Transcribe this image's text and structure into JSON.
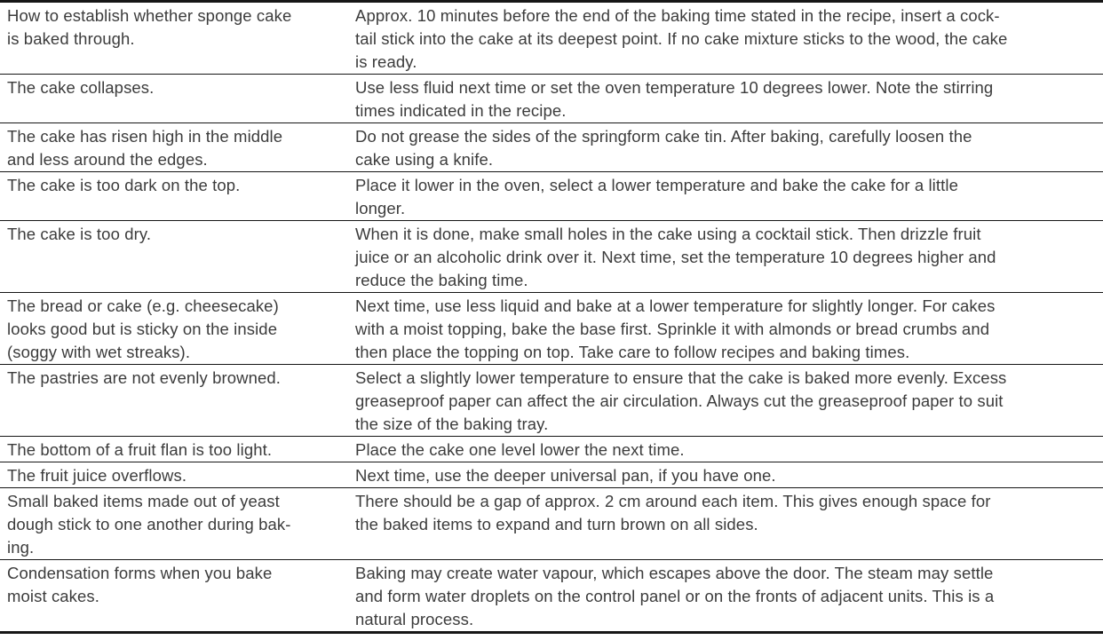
{
  "colors": {
    "background": "#ffffff",
    "text": "#3c3c3c",
    "rule": "#161616"
  },
  "table": {
    "columns": [
      "problem",
      "solution"
    ],
    "rows": [
      {
        "problem": [
          "How to establish whether sponge cake",
          "is baked through."
        ],
        "solution": [
          "Approx. 10 minutes before the end of the baking time stated in the recipe, insert a cock-",
          "tail stick into the cake at its deepest point. If no cake mixture sticks to the wood, the cake",
          "is ready."
        ]
      },
      {
        "problem": [
          "The cake collapses."
        ],
        "solution": [
          "Use less fluid next time or set the oven temperature 10 degrees lower. Note the stirring",
          "times indicated in the recipe."
        ]
      },
      {
        "problem": [
          "The cake has risen high in the middle",
          "and less around the edges."
        ],
        "solution": [
          "Do not grease the sides of the springform cake tin. After baking, carefully loosen the",
          "cake using a knife."
        ]
      },
      {
        "problem": [
          "The cake is too dark on the top."
        ],
        "solution": [
          "Place it lower in the oven, select a lower temperature and bake the cake for a little",
          "longer."
        ]
      },
      {
        "problem": [
          "The cake is too dry."
        ],
        "solution": [
          "When it is done, make small holes in the cake using a cocktail stick. Then drizzle fruit",
          "juice or an alcoholic drink over it. Next time, set the temperature 10 degrees higher and",
          "reduce the baking time."
        ]
      },
      {
        "problem": [
          "The bread or cake (e.g. cheesecake)",
          "looks good but is sticky on the inside",
          "(soggy with wet streaks)."
        ],
        "solution": [
          "Next time, use less liquid and bake at a lower temperature for slightly longer. For cakes",
          "with a moist topping, bake the base first. Sprinkle it with almonds or bread crumbs and",
          "then place the topping on top. Take care to follow recipes and baking times."
        ]
      },
      {
        "problem": [
          "The pastries are not evenly browned."
        ],
        "solution": [
          "Select a slightly lower temperature to ensure that the cake is baked more evenly. Excess",
          "greaseproof paper can affect the air circulation. Always cut the greaseproof paper to suit",
          "the size of the baking tray."
        ]
      },
      {
        "problem": [
          "The bottom of a fruit flan is too light."
        ],
        "solution": [
          "Place the cake one level lower the next time."
        ]
      },
      {
        "problem": [
          "The fruit juice overflows."
        ],
        "solution": [
          "Next time, use the deeper universal pan, if you have one."
        ]
      },
      {
        "problem": [
          "Small baked items made out of yeast",
          "dough stick to one another during bak-",
          "ing."
        ],
        "solution": [
          "There should be a gap of approx. 2 cm around each item. This gives enough space for",
          "the baked items to expand and turn brown on all sides."
        ]
      },
      {
        "problem": [
          "Condensation forms when you bake",
          "moist cakes."
        ],
        "solution": [
          "Baking may create water vapour, which escapes above the door. The steam may settle",
          "and form water droplets on the control panel or on the fronts of adjacent units. This is a",
          "natural process."
        ]
      }
    ]
  }
}
